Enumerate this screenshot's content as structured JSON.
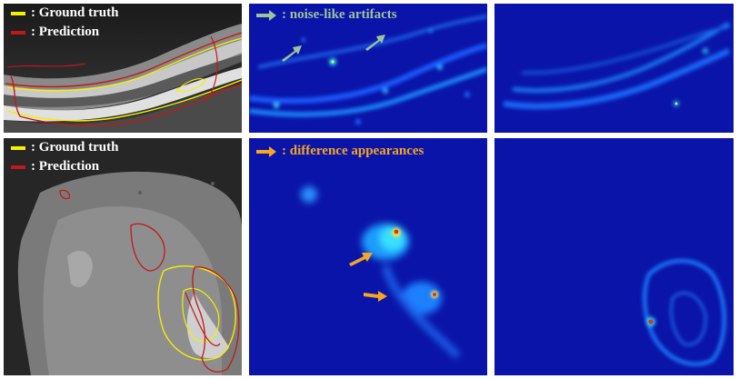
{
  "panels": {
    "top_row": {
      "legend": {
        "ground_truth": ": Ground truth",
        "prediction": ": Prediction"
      },
      "annotation": ":  noise-like artifacts"
    },
    "bottom_row": {
      "legend": {
        "ground_truth": ": Ground truth",
        "prediction": ": Prediction"
      },
      "annotation": ": difference appearances"
    }
  },
  "colors": {
    "ground_truth": "#f4f000",
    "prediction": "#c21818",
    "noise_arrow": "#9cc49a",
    "difference_arrow": "#f5a623",
    "heatmap_bg": "#0a14a8"
  }
}
